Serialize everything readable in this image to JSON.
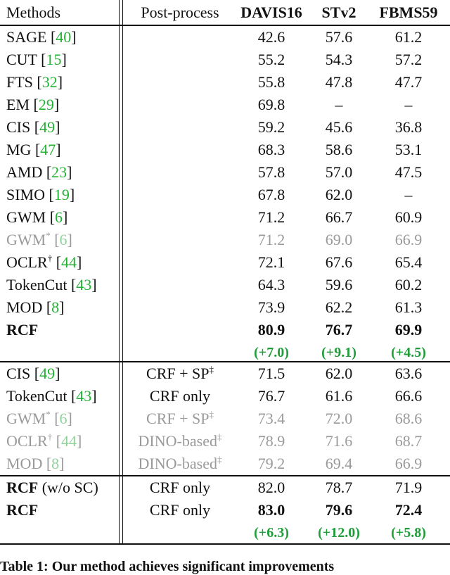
{
  "headers": {
    "methods": "Methods",
    "post": "Post-process",
    "davis": "DAVIS16",
    "stv2": "STv2",
    "fbms": "FBMS59"
  },
  "rows": [
    {
      "name": "SAGE",
      "cite": "40",
      "post": "",
      "davis": "42.6",
      "stv2": "57.6",
      "fbms": "61.2"
    },
    {
      "name": "CUT",
      "cite": "15",
      "post": "",
      "davis": "55.2",
      "stv2": "54.3",
      "fbms": "57.2"
    },
    {
      "name": "FTS",
      "cite": "32",
      "post": "",
      "davis": "55.8",
      "stv2": "47.8",
      "fbms": "47.7"
    },
    {
      "name": "EM",
      "cite": "29",
      "post": "",
      "davis": "69.8",
      "stv2": "–",
      "fbms": "–"
    },
    {
      "name": "CIS",
      "cite": "49",
      "post": "",
      "davis": "59.2",
      "stv2": "45.6",
      "fbms": "36.8"
    },
    {
      "name": "MG",
      "cite": "47",
      "post": "",
      "davis": "68.3",
      "stv2": "58.6",
      "fbms": "53.1"
    },
    {
      "name": "AMD",
      "cite": "23",
      "post": "",
      "davis": "57.8",
      "stv2": "57.0",
      "fbms": "47.5"
    },
    {
      "name": "SIMO",
      "cite": "19",
      "post": "",
      "davis": "67.8",
      "stv2": "62.0",
      "fbms": "–"
    },
    {
      "name": "GWM",
      "cite": "6",
      "post": "",
      "davis": "71.2",
      "stv2": "66.7",
      "fbms": "60.9"
    },
    {
      "name": "GWM",
      "sup": "*",
      "cite": "6",
      "post": "",
      "davis": "71.2",
      "stv2": "69.0",
      "fbms": "66.9",
      "gray": true
    },
    {
      "name": "OCLR",
      "sup": "†",
      "cite": "44",
      "post": "",
      "davis": "72.1",
      "stv2": "67.6",
      "fbms": "65.4"
    },
    {
      "name": "TokenCut",
      "cite": "43",
      "post": "",
      "davis": "64.3",
      "stv2": "59.6",
      "fbms": "60.2"
    },
    {
      "name": "MOD",
      "cite": "8",
      "post": "",
      "davis": "73.9",
      "stv2": "62.2",
      "fbms": "61.3"
    },
    {
      "name": "RCF",
      "post": "",
      "davis": "80.9",
      "stv2": "76.7",
      "fbms": "69.9",
      "bold": true
    },
    {
      "delta": true,
      "davis": "(+7.0)",
      "stv2": "(+9.1)",
      "fbms": "(+4.5)"
    },
    {
      "name": "CIS",
      "cite": "49",
      "post": "CRF + SP",
      "postsup": "‡",
      "davis": "71.5",
      "stv2": "62.0",
      "fbms": "63.6"
    },
    {
      "name": "TokenCut",
      "cite": "43",
      "post": "CRF only",
      "davis": "76.7",
      "stv2": "61.6",
      "fbms": "66.6"
    },
    {
      "name": "GWM",
      "sup": "*",
      "cite": "6",
      "post": "CRF + SP",
      "postsup": "‡",
      "davis": "73.4",
      "stv2": "72.0",
      "fbms": "68.6",
      "gray": true
    },
    {
      "name": "OCLR",
      "sup": "†",
      "cite": "44",
      "post": "DINO-based",
      "postsup": "‡",
      "davis": "78.9",
      "stv2": "71.6",
      "fbms": "68.7",
      "gray": true
    },
    {
      "name": "MOD",
      "cite": "8",
      "post": "DINO-based",
      "postsup": "‡",
      "davis": "79.2",
      "stv2": "69.4",
      "fbms": "66.9",
      "gray": true
    },
    {
      "name": "RCF",
      "suffix": " (w/o SC)",
      "post": "CRF only",
      "davis": "82.0",
      "stv2": "78.7",
      "fbms": "71.9",
      "boldName": true
    },
    {
      "name": "RCF",
      "post": "CRF only",
      "davis": "83.0",
      "stv2": "79.6",
      "fbms": "72.4",
      "bold": true
    },
    {
      "delta": true,
      "davis": "(+6.3)",
      "stv2": "(+12.0)",
      "fbms": "(+5.8)"
    }
  ],
  "caption": "Table 1: Our method achieves significant improvements"
}
